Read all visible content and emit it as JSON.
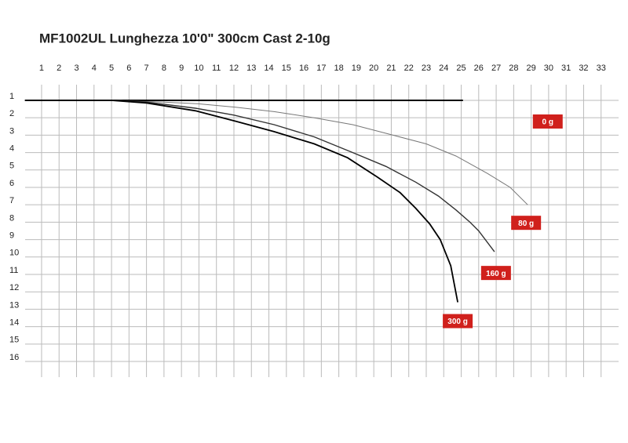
{
  "chart_data": {
    "type": "line",
    "title": "MF1002UL Lunghezza 10'0\" 300cm Cast 2-10g",
    "title_color": "#e8321e",
    "label_color": "#d0201c",
    "xlim": [
      0,
      34
    ],
    "ylim": [
      0.2,
      16.9
    ],
    "y_inverted": true,
    "grid": true,
    "xticks": [
      1,
      2,
      3,
      4,
      5,
      6,
      7,
      8,
      9,
      10,
      11,
      12,
      13,
      14,
      15,
      16,
      17,
      18,
      19,
      20,
      21,
      22,
      23,
      24,
      25,
      26,
      27,
      28,
      29,
      30,
      31,
      32,
      33
    ],
    "yticks": [
      1,
      2,
      3,
      4,
      5,
      6,
      7,
      8,
      9,
      10,
      11,
      12,
      13,
      14,
      15,
      16
    ],
    "series": [
      {
        "name": "0 g",
        "color": "#000000",
        "x": [
          0.05,
          5,
          10,
          15,
          20,
          25.1
        ],
        "values": [
          1,
          1,
          1,
          1,
          1,
          1
        ]
      },
      {
        "name": "80 g",
        "color": "#777777",
        "x": [
          0.05,
          5,
          8,
          10,
          12.1,
          14.3,
          16.6,
          18.8,
          21.1,
          23,
          24.7,
          26.5,
          27.8,
          28.8
        ],
        "values": [
          1,
          1,
          1.1,
          1.2,
          1.4,
          1.65,
          2.0,
          2.4,
          3.0,
          3.5,
          4.2,
          5.2,
          6.0,
          7.0
        ]
      },
      {
        "name": "160 g",
        "color": "#333333",
        "x": [
          0.05,
          5,
          7,
          9.8,
          12,
          14.3,
          16.6,
          18.8,
          20.7,
          22.4,
          23.7,
          24.7,
          25.5,
          26.0,
          26.9
        ],
        "values": [
          1,
          1,
          1.1,
          1.45,
          1.85,
          2.4,
          3.1,
          4.0,
          4.8,
          5.7,
          6.5,
          7.3,
          8.0,
          8.5,
          9.7
        ]
      },
      {
        "name": "300 g",
        "color": "#000000",
        "x": [
          0.05,
          5,
          7,
          9.8,
          12.1,
          14.3,
          16.6,
          18.5,
          20.2,
          21.5,
          22.4,
          23.2,
          23.8,
          24.4,
          24.8
        ],
        "values": [
          1,
          1,
          1.15,
          1.6,
          2.2,
          2.8,
          3.5,
          4.3,
          5.4,
          6.3,
          7.2,
          8.1,
          9.0,
          10.5,
          12.6
        ]
      }
    ]
  }
}
